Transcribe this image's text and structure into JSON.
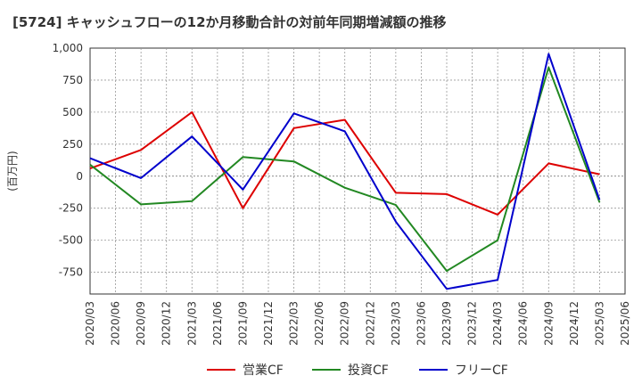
{
  "chart_data": {
    "type": "line",
    "title": "[5724]  キャッシュフローの12か月移動合計の対前年同期増減額の推移",
    "ylabel": "(百万円)",
    "xlabel": "",
    "ylim": [
      -920,
      1000
    ],
    "yticks": [
      1000,
      750,
      500,
      250,
      0,
      -250,
      -500,
      -750
    ],
    "ytick_labels": [
      "1,000",
      "750",
      "500",
      "250",
      "0",
      "-250",
      "-500",
      "-750"
    ],
    "categories": [
      "2020/03",
      "2020/06",
      "2020/09",
      "2020/12",
      "2021/03",
      "2021/06",
      "2021/09",
      "2021/12",
      "2022/03",
      "2022/06",
      "2022/09",
      "2022/12",
      "2023/03",
      "2023/06",
      "2023/09",
      "2023/12",
      "2024/03",
      "2024/06",
      "2024/09",
      "2024/12",
      "2025/03",
      "2025/06"
    ],
    "grid": true,
    "legend_position": "bottom",
    "series": [
      {
        "name": "営業CF",
        "color": "#dd0000",
        "x": [
          "2020/03",
          "2020/09",
          "2021/03",
          "2021/09",
          "2022/03",
          "2022/09",
          "2023/03",
          "2023/09",
          "2024/03",
          "2024/09",
          "2025/03"
        ],
        "values": [
          60,
          205,
          500,
          -250,
          375,
          440,
          -130,
          -140,
          -300,
          100,
          15
        ]
      },
      {
        "name": "投資CF",
        "color": "#228822",
        "x": [
          "2020/03",
          "2020/09",
          "2021/03",
          "2021/09",
          "2022/03",
          "2022/09",
          "2023/03",
          "2023/09",
          "2024/03",
          "2024/09",
          "2025/03"
        ],
        "values": [
          90,
          -220,
          -195,
          150,
          115,
          -90,
          -225,
          -740,
          -500,
          850,
          -205
        ]
      },
      {
        "name": "フリーCF",
        "color": "#0000cc",
        "x": [
          "2020/03",
          "2020/09",
          "2021/03",
          "2021/09",
          "2022/03",
          "2022/09",
          "2023/03",
          "2023/09",
          "2024/03",
          "2024/09",
          "2025/03"
        ],
        "values": [
          140,
          -15,
          310,
          -105,
          490,
          350,
          -355,
          -880,
          -810,
          955,
          -185
        ]
      }
    ]
  }
}
